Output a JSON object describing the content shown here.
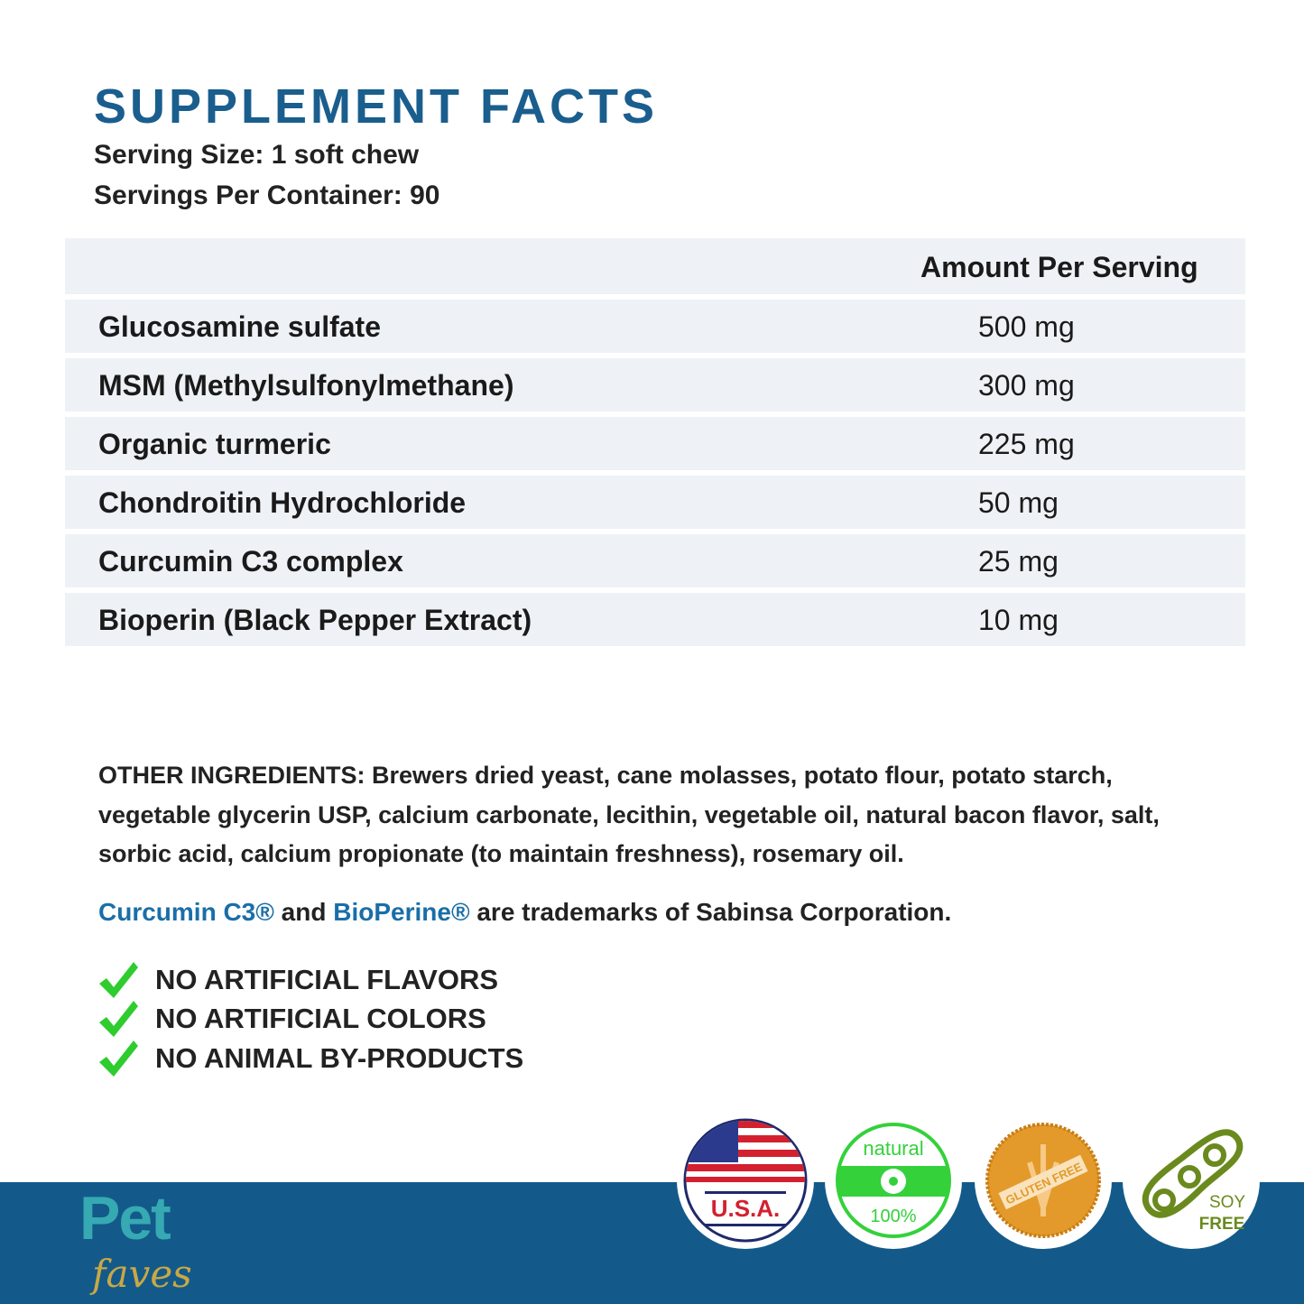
{
  "title": "SUPPLEMENT FACTS",
  "serving_size": "Serving Size: 1 soft chew",
  "servings_per_container": "Servings Per Container: 90",
  "table": {
    "header": "Amount Per Serving",
    "rows": [
      {
        "name": "Glucosamine sulfate",
        "amount": "500 mg"
      },
      {
        "name": "MSM (Methylsulfonylmethane)",
        "amount": "300 mg"
      },
      {
        "name": "Organic turmeric",
        "amount": "225 mg"
      },
      {
        "name": "Chondroitin Hydrochloride",
        "amount": "50 mg"
      },
      {
        "name": "Curcumin C3 complex",
        "amount": "25 mg"
      },
      {
        "name": "Bioperin (Black Pepper Extract)",
        "amount": "10 mg"
      }
    ]
  },
  "other_ingredients": "OTHER INGREDIENTS: Brewers dried yeast, cane molasses, potato flour, potato starch, vegetable glycerin USP, calcium carbonate, lecithin, vegetable oil, natural bacon flavor, salt, sorbic acid, calcium propionate (to maintain freshness), rosemary oil.",
  "trademark": {
    "tm1": "Curcumin C3®",
    "and": " and ",
    "tm2": "BioPerine®",
    "rest": " are trademarks of Sabinsa Corporation."
  },
  "claims": [
    "NO ARTIFICIAL FLAVORS",
    "NO ARTIFICIAL COLORS",
    "NO ANIMAL BY-PRODUCTS"
  ],
  "brand": {
    "line1": "Pet",
    "line2": "faves"
  },
  "badges": [
    {
      "label": "U.S.A.",
      "icon": "usa-flag-icon"
    },
    {
      "label_top": "natural",
      "label_bottom": "100%",
      "icon": "natural-icon"
    },
    {
      "label": "GLUTEN FREE",
      "icon": "gluten-free-icon"
    },
    {
      "label_top": "SOY",
      "label_bottom": "FREE",
      "icon": "soy-free-icon"
    }
  ],
  "colors": {
    "title": "#1a5e8e",
    "band": "#135a8a",
    "row_bg": "#eef2f6",
    "check": "#2ecc2e",
    "link": "#1a6ea8"
  }
}
